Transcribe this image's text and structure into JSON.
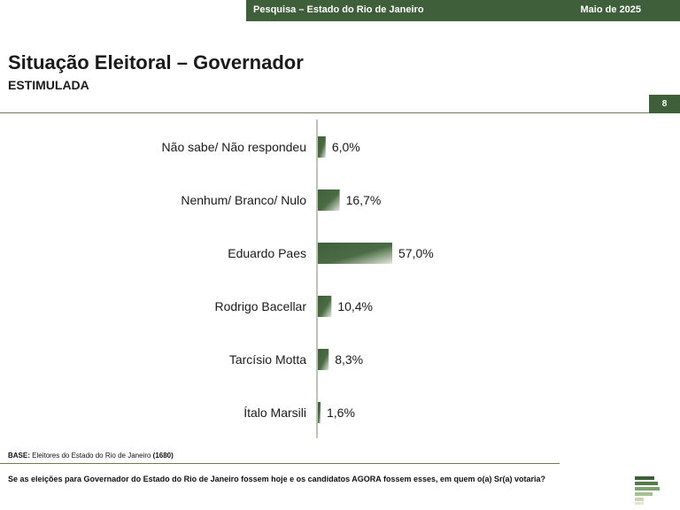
{
  "header": {
    "left_text": "Pesquisa – Estado do Rio de Janeiro",
    "right_text": "Maio de 2025"
  },
  "title": "Situação Eleitoral – Governador",
  "subtitle": "ESTIMULADA",
  "page_number": "8",
  "base_note": {
    "label": "BASE:",
    "text": "Eleitores do Estado do Rio de Janeiro",
    "count": "(1680)"
  },
  "question": "Se as eleições para Governador do Estado do Rio de Janeiro fossem hoje e os candidatos AGORA fossem esses, em quem o(a) Sr(a) votaria?",
  "colors": {
    "bar": "#3f5f3a",
    "bar_light": "#dfe6d8",
    "header_bg": "#3f5f3a"
  },
  "chart_data": {
    "type": "bar",
    "orientation": "horizontal",
    "categories": [
      "Não sabe/ Não respondeu",
      "Nenhum/ Branco/ Nulo",
      "Eduardo Paes",
      "Rodrigo Bacellar",
      "Tarcísio Motta",
      "Ítalo Marsili"
    ],
    "values": [
      6.0,
      16.7,
      57.0,
      10.4,
      8.3,
      1.6
    ],
    "value_labels": [
      "6,0%",
      "16,7%",
      "57,0%",
      "10,4%",
      "8,3%",
      "1,6%"
    ],
    "unit": "%",
    "title": "",
    "xlabel": "",
    "ylabel": "",
    "grid": false,
    "legend": "none"
  }
}
